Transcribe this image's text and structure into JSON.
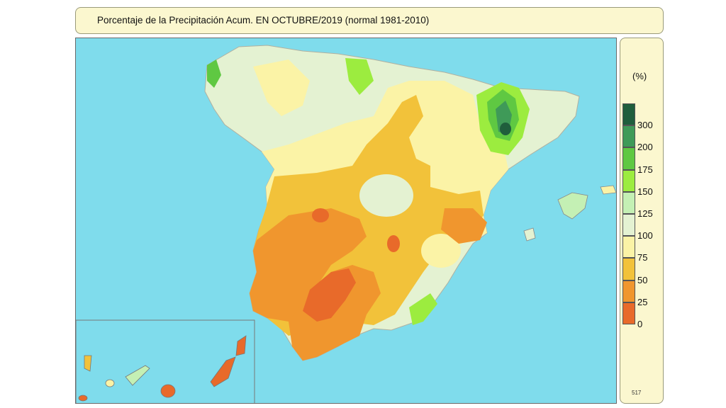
{
  "title": "Porcentaje de la Precipitación Acum. EN  OCTUBRE/2019  (normal 1981-2010)",
  "legend": {
    "unit": "(%)",
    "classes": [
      {
        "label": "300",
        "color": "#1f5e3c"
      },
      {
        "label": "200",
        "color": "#3f9a58"
      },
      {
        "label": "175",
        "color": "#5fc842"
      },
      {
        "label": "150",
        "color": "#9cec3f"
      },
      {
        "label": "125",
        "color": "#c4f0b4"
      },
      {
        "label": "100",
        "color": "#e4f2d2"
      },
      {
        "label": "75",
        "color": "#fbf3a6"
      },
      {
        "label": "50",
        "color": "#f2c23a"
      },
      {
        "label": "25",
        "color": "#f0962e"
      },
      {
        "label": "0",
        "color": "#e86a2a"
      }
    ],
    "code": "517"
  },
  "colors": {
    "sea": "#7fdcec",
    "panel": "#fbf7cf"
  }
}
